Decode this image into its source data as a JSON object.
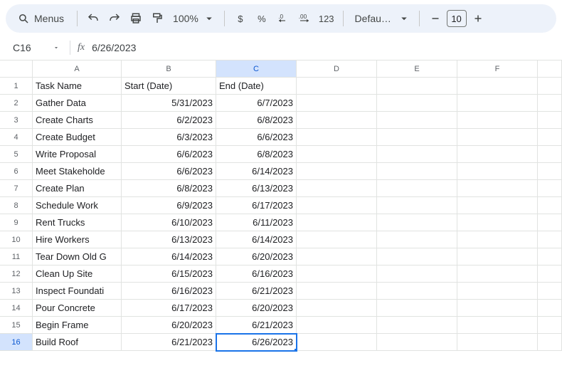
{
  "toolbar": {
    "menus_label": "Menus",
    "zoom_label": "100%",
    "currency_label": "$",
    "percent_label": "%",
    "decdec_label": ".0",
    "incdec_label": ".00",
    "format123_label": "123",
    "font_label": "Defaul…",
    "font_size": "10"
  },
  "namebox": {
    "cell_ref": "C16",
    "fx_label": "fx",
    "formula_value": "6/26/2023"
  },
  "columns": [
    "A",
    "B",
    "C",
    "D",
    "E",
    "F"
  ],
  "selected_col_index": 2,
  "selected_row_index": 15,
  "headers": {
    "A": "Task Name",
    "B": "Start (Date)",
    "C": "End (Date)"
  },
  "rows": [
    {
      "n": "1",
      "a": "Task Name",
      "b": "Start (Date)",
      "c": "End (Date)",
      "b_align": "left",
      "c_align": "left"
    },
    {
      "n": "2",
      "a": "Gather Data",
      "b": "5/31/2023",
      "c": "6/7/2023"
    },
    {
      "n": "3",
      "a": "Create Charts",
      "b": "6/2/2023",
      "c": "6/8/2023"
    },
    {
      "n": "4",
      "a": "Create Budget",
      "b": "6/3/2023",
      "c": "6/6/2023"
    },
    {
      "n": "5",
      "a": "Write Proposal",
      "b": "6/6/2023",
      "c": "6/8/2023"
    },
    {
      "n": "6",
      "a": "Meet Stakeholde",
      "b": "6/6/2023",
      "c": "6/14/2023"
    },
    {
      "n": "7",
      "a": "Create Plan",
      "b": "6/8/2023",
      "c": "6/13/2023"
    },
    {
      "n": "8",
      "a": "Schedule Work",
      "b": "6/9/2023",
      "c": "6/17/2023"
    },
    {
      "n": "9",
      "a": "Rent Trucks",
      "b": "6/10/2023",
      "c": "6/11/2023"
    },
    {
      "n": "10",
      "a": "Hire Workers",
      "b": "6/13/2023",
      "c": "6/14/2023"
    },
    {
      "n": "11",
      "a": "Tear Down Old G",
      "b": "6/14/2023",
      "c": "6/20/2023"
    },
    {
      "n": "12",
      "a": "Clean Up Site",
      "b": "6/15/2023",
      "c": "6/16/2023"
    },
    {
      "n": "13",
      "a": "Inspect Foundati",
      "b": "6/16/2023",
      "c": "6/21/2023"
    },
    {
      "n": "14",
      "a": "Pour Concrete",
      "b": "6/17/2023",
      "c": "6/20/2023"
    },
    {
      "n": "15",
      "a": "Begin Frame",
      "b": "6/20/2023",
      "c": "6/21/2023"
    },
    {
      "n": "16",
      "a": "Build Roof",
      "b": "6/21/2023",
      "c": "6/26/2023",
      "selected": "C"
    }
  ],
  "colors": {
    "toolbar_bg": "#edf2fa",
    "selection": "#1a73e8",
    "header_sel_bg": "#d3e3fd",
    "grid_line": "#e1e3e1"
  }
}
